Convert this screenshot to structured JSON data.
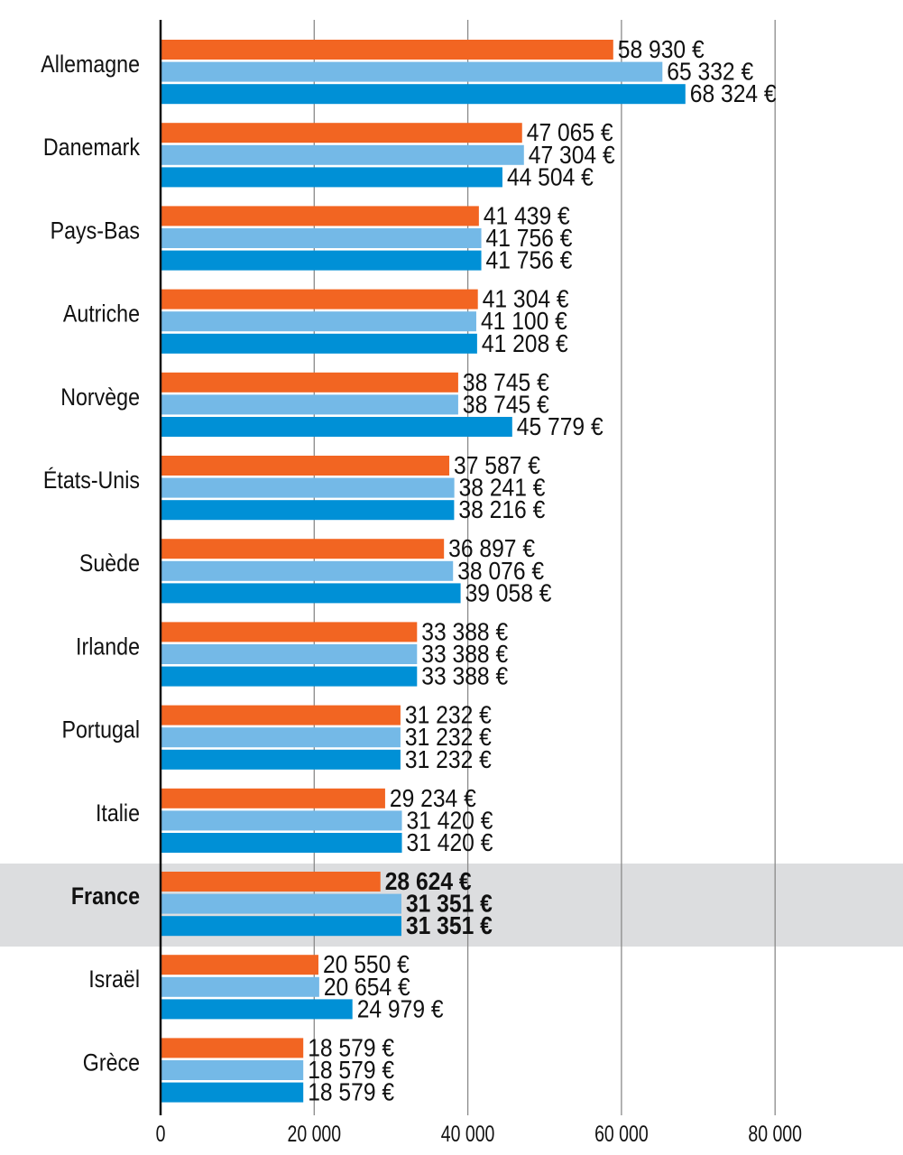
{
  "chart_data": {
    "type": "bar",
    "orientation": "horizontal",
    "categories": [
      "Allemagne",
      "Danemark",
      "Pays-Bas",
      "Autriche",
      "Norvège",
      "États-Unis",
      "Suède",
      "Irlande",
      "Portugal",
      "Italie",
      "France",
      "Israël",
      "Grèce"
    ],
    "highlight_category": "France",
    "series": [
      {
        "color": "#f26522",
        "values": [
          58930,
          47065,
          41439,
          41304,
          38745,
          37587,
          36897,
          33388,
          31232,
          29234,
          28624,
          20550,
          18579
        ],
        "labels": [
          "58 930 €",
          "47 065 €",
          "41 439 €",
          "41 304 €",
          "38 745 €",
          "37 587 €",
          "36 897 €",
          "33 388 €",
          "31 232 €",
          "29 234 €",
          "28 624 €",
          "20 550 €",
          "18 579 €"
        ]
      },
      {
        "color": "#74b9e7",
        "values": [
          65332,
          47304,
          41756,
          41100,
          38745,
          38241,
          38076,
          33388,
          31232,
          31420,
          31351,
          20654,
          18579
        ],
        "labels": [
          "65 332 €",
          "47 304 €",
          "41 756 €",
          "41 100 €",
          "38 745 €",
          "38 241 €",
          "38 076 €",
          "33 388 €",
          "31 232 €",
          "31 420 €",
          "31 351 €",
          "20 654 €",
          "18 579 €"
        ]
      },
      {
        "color": "#0090d6",
        "values": [
          68324,
          44504,
          41756,
          41208,
          45779,
          38216,
          39058,
          33388,
          31232,
          31420,
          31351,
          24979,
          18579
        ],
        "labels": [
          "68 324 €",
          "44 504 €",
          "41 756 €",
          "41 208 €",
          "45 779 €",
          "38 216 €",
          "39 058 €",
          "33 388 €",
          "31 232 €",
          "31 420 €",
          "31 351 €",
          "24 979 €",
          "18 579 €"
        ]
      }
    ],
    "xlim": [
      0,
      90000
    ],
    "xticks": [
      0,
      20000,
      40000,
      60000,
      80000
    ],
    "xtick_labels": [
      "0",
      "20 000",
      "40 000",
      "60 000",
      "80 000"
    ],
    "grid": true,
    "highlight_color": "#dcdddf"
  }
}
